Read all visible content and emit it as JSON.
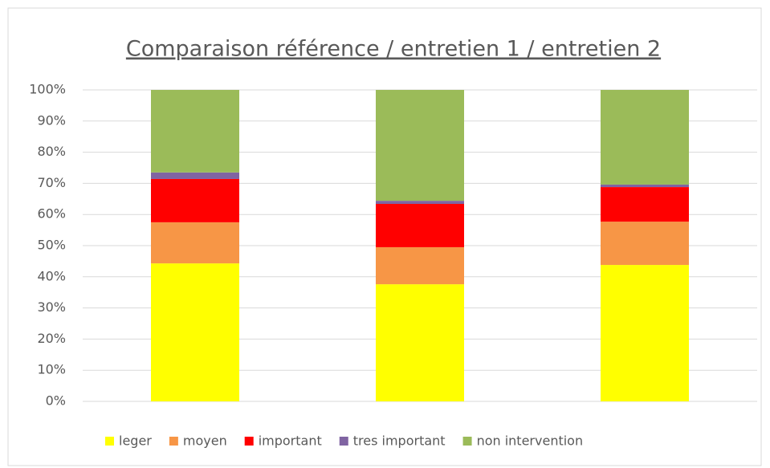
{
  "chart_data": {
    "type": "stacked_bar",
    "title": "Comparaison référence / entretien 1 / entretien 2",
    "categories": [
      null,
      null,
      null
    ],
    "series": [
      {
        "name": "leger",
        "color": "#ffff00",
        "values": [
          44.3,
          37.6,
          43.8
        ]
      },
      {
        "name": "moyen",
        "color": "#f79646",
        "values": [
          13.2,
          11.9,
          13.9
        ]
      },
      {
        "name": "important",
        "color": "#ff0000",
        "values": [
          13.9,
          13.9,
          11.1
        ]
      },
      {
        "name": "tres important",
        "color": "#8064a2",
        "values": [
          2.1,
          1.0,
          0.8
        ]
      },
      {
        "name": "non intervention",
        "color": "#9bbb59",
        "values": [
          26.5,
          35.6,
          30.4
        ]
      }
    ],
    "ylim": [
      0,
      100
    ],
    "yticks": [
      {
        "value": 0,
        "label": "0%"
      },
      {
        "value": 10,
        "label": "10%"
      },
      {
        "value": 20,
        "label": "20%"
      },
      {
        "value": 30,
        "label": "30%"
      },
      {
        "value": 40,
        "label": "40%"
      },
      {
        "value": 50,
        "label": "50%"
      },
      {
        "value": 60,
        "label": "60%"
      },
      {
        "value": 70,
        "label": "70%"
      },
      {
        "value": 80,
        "label": "80%"
      },
      {
        "value": 90,
        "label": "90%"
      },
      {
        "value": 100,
        "label": "100%"
      }
    ],
    "grid": true,
    "legend": "bottom"
  }
}
